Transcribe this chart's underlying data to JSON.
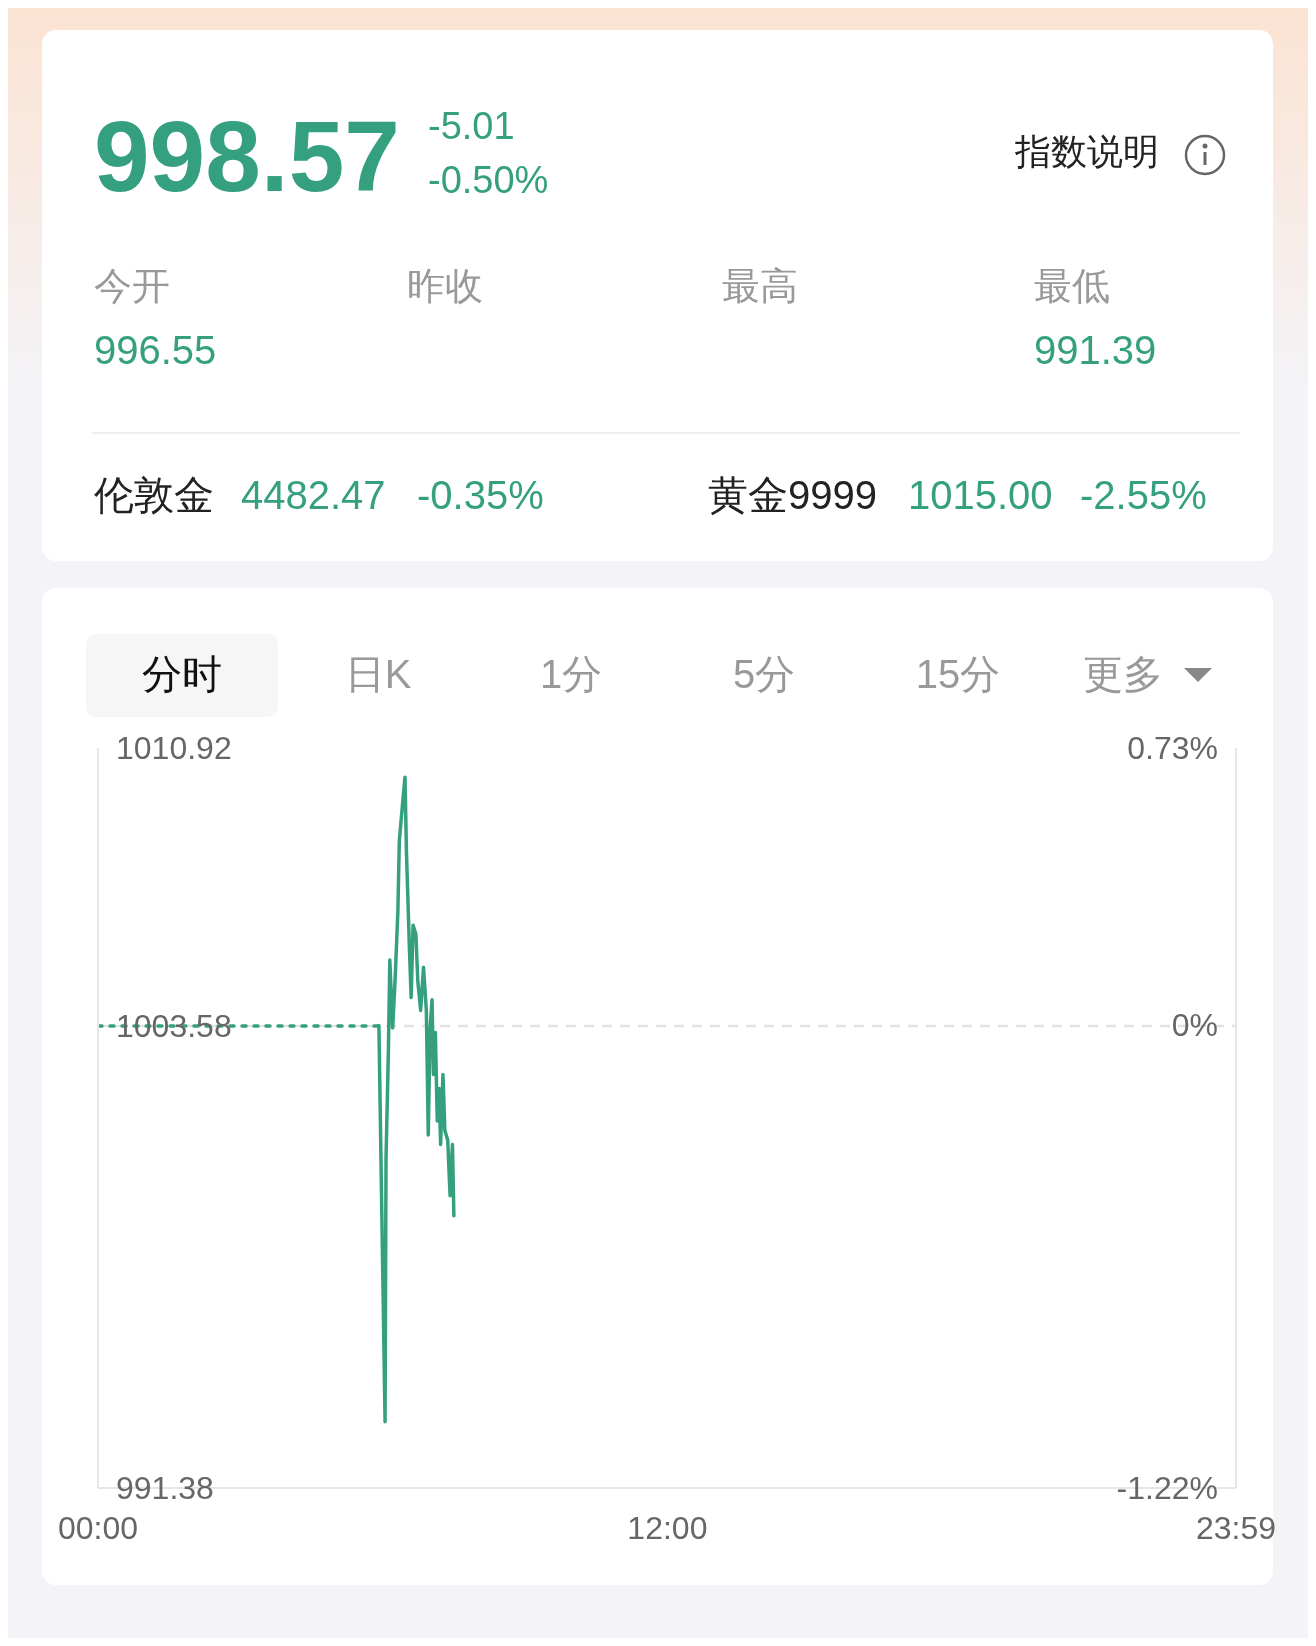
{
  "chart_data": [
    {
      "type": "other",
      "annotations": [
        "998.57",
        "-5.01",
        "-0.50%",
        "指数说明",
        "今开",
        "996.55",
        "昨收",
        "最高",
        "最低",
        "991.39",
        "伦敦金",
        "4482.47",
        "-0.35%",
        "黄金9999",
        "1015.00",
        "-2.55%"
      ]
    },
    {
      "type": "line",
      "annotations": [
        "分时",
        "日K",
        "1分",
        "5分",
        "15分",
        "更多"
      ],
      "series": [
        {
          "type": "line",
          "color": "#35a07f",
          "line_style": "dotted",
          "x": [
            0,
            5.92
          ],
          "values": [
            1003.58,
            1003.58
          ]
        },
        {
          "type": "line",
          "color": "#35a07f",
          "line_style": "solid",
          "x": [
            5.92,
            6.05,
            6.07,
            6.12,
            6.15,
            6.21,
            6.26,
            6.32,
            6.35,
            6.41,
            6.47,
            6.5,
            6.56,
            6.6,
            6.64,
            6.7,
            6.74,
            6.8,
            6.86,
            6.92,
            6.96,
            7.0,
            7.04,
            7.07,
            7.11,
            7.15,
            7.19,
            7.22,
            7.27,
            7.31,
            7.37,
            7.42,
            7.47,
            7.5
          ],
          "values": [
            1003.59,
            993.13,
            1000.08,
            1002.92,
            1005.32,
            1003.53,
            1004.76,
            1006.61,
            1008.46,
            1009.32,
            1010.15,
            1008.21,
            1005.74,
            1004.33,
            1006.24,
            1006.0,
            1004.76,
            1003.99,
            1005.13,
            1003.99,
            1000.7,
            1003.53,
            1004.27,
            1002.3,
            1003.41,
            1001.07,
            1001.93,
            1000.45,
            1002.3,
            1000.82,
            1000.57,
            999.1,
            1000.45,
            998.57
          ]
        }
      ],
      "xlim": [
        0,
        23.9833
      ],
      "xticks": [
        {
          "value": 0,
          "label": "00:00"
        },
        {
          "value": 12,
          "label": "12:00"
        },
        {
          "value": 23.9833,
          "label": "23:59"
        }
      ],
      "ylim": [
        991.38,
        1010.92
      ],
      "yticks": [
        991.38,
        1003.58,
        1010.92
      ],
      "y2lim": [
        -1.22,
        0.73
      ],
      "y2ticks": [
        {
          "value": -1.22,
          "label": "-1.22%"
        },
        {
          "value": 0,
          "label": "0%"
        },
        {
          "value": 0.73,
          "label": "0.73%"
        }
      ],
      "ref_lines": [
        {
          "axis": "y",
          "value": 1003.58,
          "color": "#e2e2e2",
          "line_style": "dashed"
        }
      ],
      "grid": false,
      "legend": false
    }
  ]
}
